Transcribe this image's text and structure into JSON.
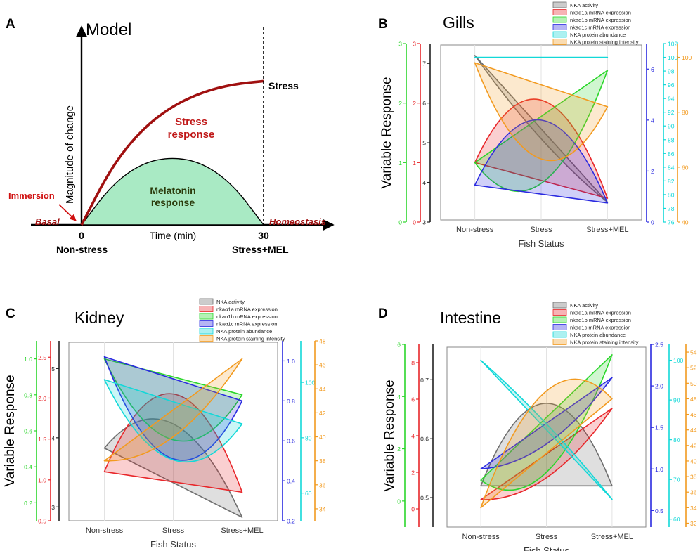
{
  "panels": {
    "A": {
      "letter": "A",
      "title": "Model"
    },
    "B": {
      "letter": "B",
      "title": "Gills"
    },
    "C": {
      "letter": "C",
      "title": "Kidney"
    },
    "D": {
      "letter": "D",
      "title": "Intestine"
    }
  },
  "colors": {
    "nka_activity": "#6e6e6e",
    "nkaa1a": "#e8262a",
    "nkaa1b": "#2bd62b",
    "nkaa1c": "#2a2ae0",
    "protein_abundance": "#12d8d8",
    "staining": "#f29a1f",
    "stress_curve": "#a01010",
    "melatonin_fill": "#a9eac4"
  },
  "chart_data": [
    {
      "panel": "A",
      "type": "area",
      "title": "Model",
      "ylabel": "Magnitude of change",
      "xlabel": "Time (min)",
      "x_ticks": [
        "0",
        "30"
      ],
      "labels": {
        "stress": "Stress",
        "stress_response": [
          "Stress",
          "response"
        ],
        "melatonin_response": [
          "Melatonin",
          "response"
        ],
        "immersion": "Immersion",
        "basal": "Basal",
        "homeostasis": "Homeostasis",
        "non_stress": "Non-stress",
        "stress_mel": "Stress+MEL"
      },
      "series": [
        {
          "name": "Stress response",
          "x": [
            0,
            5,
            10,
            15,
            20,
            25,
            30
          ],
          "y": [
            0,
            0.38,
            0.62,
            0.77,
            0.86,
            0.91,
            0.93
          ]
        },
        {
          "name": "Melatonin response",
          "x": [
            0,
            5,
            10,
            15,
            20,
            25,
            30
          ],
          "y": [
            0,
            0.26,
            0.4,
            0.44,
            0.4,
            0.26,
            0
          ]
        }
      ]
    },
    {
      "panel": "B",
      "type": "area",
      "title": "Gills",
      "xlabel": "Fish Status",
      "ylabel": "Variable Response",
      "categories": [
        "Non-stress",
        "Stress",
        "Stress+MEL"
      ],
      "legend": [
        "NKA activity",
        "nkaα1a mRNA expression",
        "nkaα1b mRNA expression",
        "nkaα1c mRNA expression",
        "NKA protein abundance",
        "NKA protein staining intensity"
      ],
      "axes": [
        {
          "color": "green",
          "ticks": [
            "0",
            "1",
            "2",
            "3"
          ],
          "range": [
            0,
            3
          ]
        },
        {
          "color": "red",
          "ticks": [
            "0",
            "1",
            "2",
            "3"
          ],
          "range": [
            0,
            3
          ]
        },
        {
          "color": "black",
          "ticks": [
            "3",
            "4",
            "5",
            "6",
            "7"
          ],
          "range": [
            3,
            7.5
          ]
        },
        {
          "color": "blue",
          "ticks": [
            "0",
            "2",
            "4",
            "6"
          ],
          "range": [
            0,
            7
          ]
        },
        {
          "color": "cyan",
          "ticks": [
            "76",
            "78",
            "80",
            "82",
            "84",
            "86",
            "88",
            "90",
            "92",
            "94",
            "96",
            "98",
            "100",
            "102"
          ],
          "range": [
            76,
            102
          ]
        },
        {
          "color": "orange",
          "ticks": [
            "40",
            "60",
            "80",
            "100"
          ],
          "range": [
            40,
            105
          ]
        }
      ],
      "series": [
        {
          "name": "NKA activity",
          "values": [
            7.2,
            5.1,
            3.5
          ]
        },
        {
          "name": "nkaα1a mRNA expression",
          "values": [
            1.0,
            2.05,
            0.4
          ]
        },
        {
          "name": "nkaα1b mRNA expression",
          "values": [
            1.0,
            0.65,
            2.55
          ]
        },
        {
          "name": "nkaα1c mRNA expression",
          "values": [
            1.45,
            4.0,
            0.75
          ]
        },
        {
          "name": "NKA protein abundance",
          "values": [
            100,
            100,
            100
          ]
        },
        {
          "name": "NKA protein staining intensity",
          "values": [
            98,
            63,
            82
          ]
        }
      ]
    },
    {
      "panel": "C",
      "type": "area",
      "title": "Kidney",
      "xlabel": "Fish Status",
      "ylabel": "Variable Response",
      "categories": [
        "Non-stress",
        "Stress",
        "Stress+MEL"
      ],
      "legend": [
        "NKA activity",
        "nkaα1a mRNA expression",
        "nkaα1b mRNA expression",
        "nkaα1c mRNA expression",
        "NKA protein abundance",
        "NKA protein staining intensity"
      ],
      "axes": [
        {
          "color": "green",
          "ticks": [
            "0.2",
            "0.4",
            "0.6",
            "0.8",
            "1.0"
          ],
          "range": [
            0.1,
            1.1
          ]
        },
        {
          "color": "red",
          "ticks": [
            "0.5",
            "1.0",
            "1.5",
            "2.0",
            "2.5"
          ],
          "range": [
            0.5,
            2.7
          ]
        },
        {
          "color": "black",
          "ticks": [
            "3",
            "4",
            "5"
          ],
          "range": [
            2.8,
            5.4
          ]
        },
        {
          "color": "blue",
          "ticks": [
            "0.2",
            "0.4",
            "0.6",
            "0.8",
            "1.0"
          ],
          "range": [
            0.2,
            1.1
          ]
        },
        {
          "color": "cyan",
          "ticks": [
            "60",
            "80",
            "100"
          ],
          "range": [
            50,
            115
          ]
        },
        {
          "color": "orange",
          "ticks": [
            "34",
            "36",
            "38",
            "40",
            "42",
            "44",
            "46",
            "48"
          ],
          "range": [
            33,
            48
          ]
        }
      ],
      "series": [
        {
          "name": "NKA activity",
          "values": [
            3.85,
            4.2,
            2.85
          ]
        },
        {
          "name": "nkaα1a mRNA expression",
          "values": [
            1.1,
            2.05,
            0.85
          ]
        },
        {
          "name": "nkaα1b mRNA expression",
          "values": [
            1.0,
            0.55,
            0.8
          ]
        },
        {
          "name": "nkaα1c mRNA expression",
          "values": [
            1.02,
            0.51,
            0.8
          ]
        },
        {
          "name": "NKA protein abundance",
          "values": [
            101,
            72,
            85
          ]
        },
        {
          "name": "NKA protein staining intensity",
          "values": [
            38,
            40,
            46.5
          ]
        }
      ]
    },
    {
      "panel": "D",
      "type": "area",
      "title": "Intestine",
      "xlabel": "Fish Status",
      "ylabel": "Variable Response",
      "categories": [
        "Non-stress",
        "Stress",
        "Stress+MEL"
      ],
      "legend": [
        "NKA activity",
        "nkaα1a mRNA expression",
        "nkaα1b mRNA expression",
        "nkaα1c mRNA expression",
        "NKA protein abundance",
        "NKA protein staining intensity"
      ],
      "axes": [
        {
          "color": "green",
          "ticks": [
            "0",
            "2",
            "4",
            "6"
          ],
          "range": [
            -1,
            6
          ]
        },
        {
          "color": "red",
          "ticks": [
            "0",
            "2",
            "4",
            "6",
            "8"
          ],
          "range": [
            -1,
            9
          ]
        },
        {
          "color": "black",
          "ticks": [
            "0.5",
            "0.6",
            "0.7"
          ],
          "range": [
            0.45,
            0.76
          ]
        },
        {
          "color": "blue",
          "ticks": [
            "0.5",
            "1.0",
            "1.5",
            "2.0",
            "2.5"
          ],
          "range": [
            0.3,
            2.5
          ]
        },
        {
          "color": "cyan",
          "ticks": [
            "60",
            "70",
            "80",
            "90",
            "100"
          ],
          "range": [
            58,
            104
          ]
        },
        {
          "color": "orange",
          "ticks": [
            "32",
            "34",
            "36",
            "38",
            "40",
            "42",
            "44",
            "46",
            "48",
            "50",
            "52",
            "54"
          ],
          "range": [
            31.5,
            55
          ]
        }
      ],
      "series": [
        {
          "name": "NKA activity",
          "values": [
            0.52,
            0.66,
            0.52
          ]
        },
        {
          "name": "nkaα1a mRNA expression",
          "values": [
            0.5,
            1.7,
            5.5
          ]
        },
        {
          "name": "nkaα1b mRNA expression",
          "values": [
            0.8,
            1.1,
            5.6
          ]
        },
        {
          "name": "nkaα1c mRNA expression",
          "values": [
            1.0,
            1.3,
            2.1
          ]
        },
        {
          "name": "NKA protein abundance",
          "values": [
            100,
            84,
            65
          ]
        },
        {
          "name": "NKA protein staining intensity",
          "values": [
            34,
            49,
            48
          ]
        }
      ]
    }
  ]
}
